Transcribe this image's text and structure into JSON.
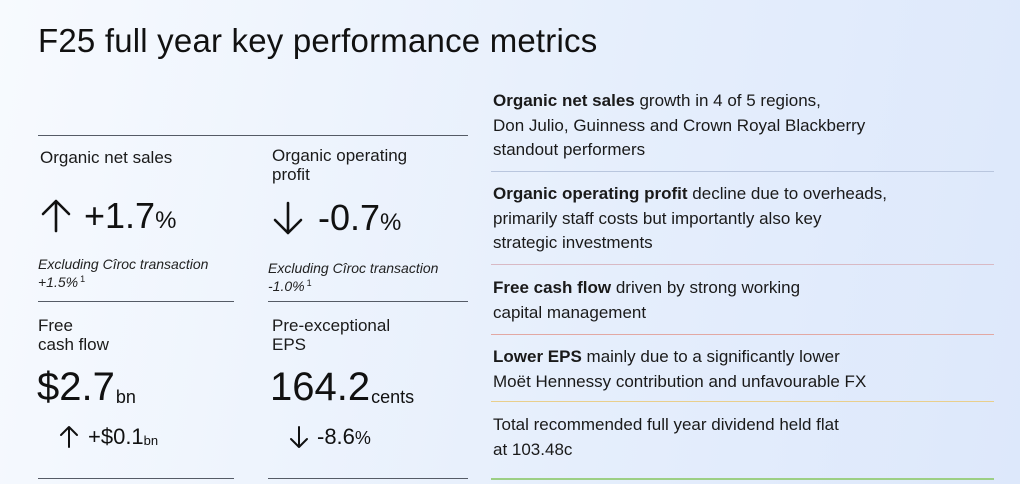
{
  "title": "F25 full year key performance metrics",
  "metrics": {
    "organic_net_sales": {
      "label": "Organic net sales",
      "direction": "up",
      "value": "+1.7",
      "unit": "%",
      "note": "Excluding Cîroc transaction +1.5%",
      "footnote": "1"
    },
    "organic_operating_profit": {
      "label_line1": "Organic operating",
      "label_line2": "profit",
      "direction": "down",
      "value": "-0.7",
      "unit": "%",
      "note": "Excluding Cîroc transaction -1.0%",
      "footnote": "1"
    },
    "free_cash_flow": {
      "label_line1": "Free",
      "label_line2": "cash flow",
      "value": "$2.7",
      "unit": "bn",
      "change_direction": "up",
      "change": "+$0.1",
      "change_unit": "bn"
    },
    "pre_exceptional_eps": {
      "label_line1": "Pre-exceptional",
      "label_line2": "EPS",
      "value": "164.2",
      "unit": "cents",
      "change_direction": "down",
      "change": "-8.6",
      "change_unit": "%"
    }
  },
  "highlights": [
    {
      "bold": "Organic net sales",
      "line1_rest": " growth in 4 of 5 regions,",
      "line2": "Don Julio, Guinness and Crown Royal Blackberry",
      "line3": "standout performers"
    },
    {
      "bold": "Organic operating profit",
      "line1_rest": " decline due to overheads,",
      "line2": "primarily staff costs but importantly also key",
      "line3": "strategic investments"
    },
    {
      "bold": "Free cash flow",
      "line1_rest": " driven by strong working",
      "line2": "capital management"
    },
    {
      "bold": "Lower EPS",
      "line1_rest": " mainly due to a significantly lower",
      "line2": "Moët Hennessy contribution and unfavourable FX"
    },
    {
      "line1": "Total recommended full year dividend held flat",
      "line2": "at 103.48c"
    }
  ],
  "colors": {
    "text": "#111111",
    "rule": "#555b66",
    "separator_1": "#b9c6de",
    "separator_2": "#d8b9c4",
    "separator_3": "#e2a8a3",
    "separator_4": "#e9cf8c",
    "separator_5": "#9ccf84"
  }
}
